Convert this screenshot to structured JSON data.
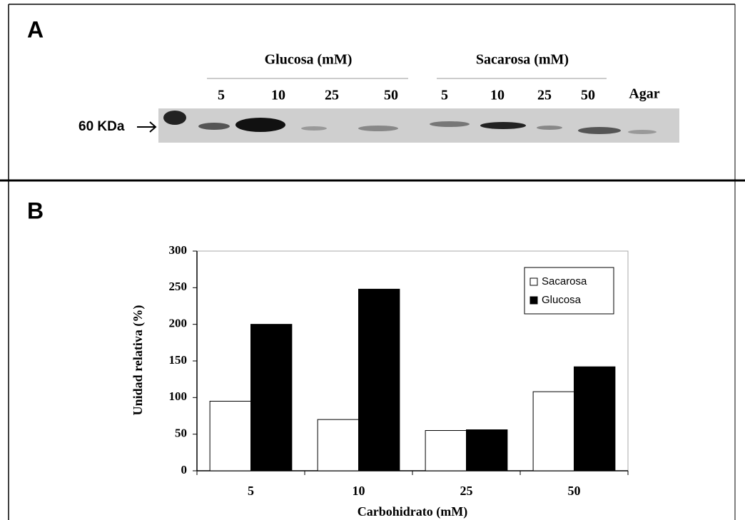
{
  "panel_a": {
    "label": "A",
    "marker": "60 KDa",
    "groups": [
      {
        "name": "Glucosa (mM)",
        "lanes": [
          "5",
          "10",
          "25",
          "50"
        ]
      },
      {
        "name": "Sacarosa (mM)",
        "lanes": [
          "5",
          "10",
          "25",
          "50"
        ]
      }
    ],
    "control_lane": "Agar"
  },
  "panel_b": {
    "label": "B"
  },
  "chart_data": {
    "type": "bar",
    "x_label": "Carbohidrato (mM)",
    "y_label": "Unidad relativa (%)",
    "categories": [
      "5",
      "10",
      "25",
      "50"
    ],
    "series": [
      {
        "name": "Sacarosa",
        "color": "#ffffff",
        "values": [
          95,
          70,
          55,
          108
        ]
      },
      {
        "name": "Glucosa",
        "color": "#000000",
        "values": [
          200,
          248,
          56,
          142
        ]
      }
    ],
    "ylim": [
      0,
      300
    ],
    "yticks": [
      0,
      50,
      100,
      150,
      200,
      250,
      300
    ],
    "grid": false,
    "legend": "upper-right"
  }
}
